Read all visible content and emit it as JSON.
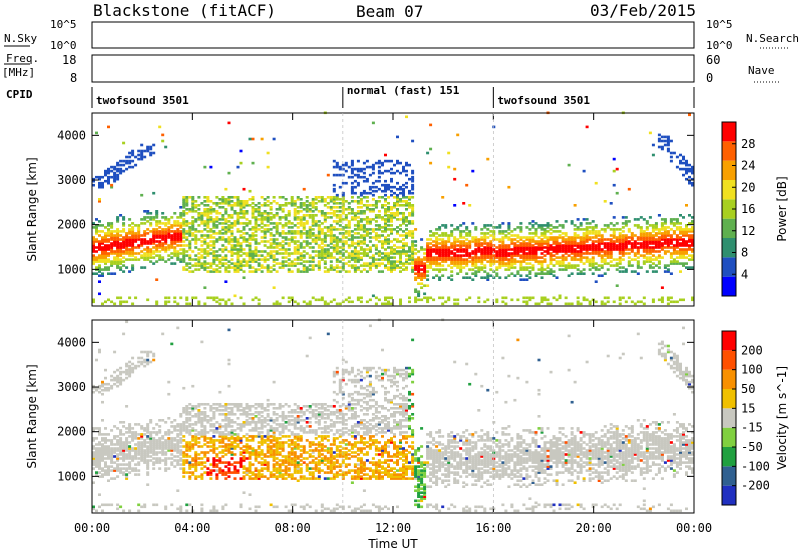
{
  "header": {
    "station": "Blackstone (fitACF)",
    "beam": "Beam 07",
    "date": "03/Feb/2015"
  },
  "top_panels": {
    "nsky_label": "N.Sky",
    "nsky_ticks": [
      "10^5",
      "10^0"
    ],
    "nsearch_label": "N.Search",
    "nsearch_ticks": [
      "10^5",
      "10^0"
    ],
    "freq_label": "Freq.",
    "freq_unit": "[MHz]",
    "freq_ticks": [
      "18",
      "8"
    ],
    "nave_label": "Nave",
    "nave_ticks": [
      "60",
      "0"
    ],
    "cpid_label": "CPID",
    "cpid_segments": [
      {
        "name": "twofsound 3501",
        "start_ut": 0,
        "end_ut": 10
      },
      {
        "name": "normal (fast) 151",
        "start_ut": 10,
        "end_ut": 16
      },
      {
        "name": "twofsound 3501",
        "start_ut": 16,
        "end_ut": 24
      }
    ]
  },
  "chart_data": [
    {
      "type": "heatmap",
      "name": "power",
      "xlabel": "Time UT",
      "ylabel": "Slant Range [km]",
      "x_ticks": [
        "00:00",
        "04:00",
        "08:00",
        "12:00",
        "16:00",
        "20:00",
        "00:00"
      ],
      "xlim": [
        0,
        24
      ],
      "y_ticks": [
        1000,
        2000,
        3000,
        4000
      ],
      "ylim": [
        180,
        4500
      ],
      "colorbar_label": "Power [dB]",
      "colorbar_ticks": [
        "28",
        "24",
        "20",
        "16",
        "12",
        "8",
        "4"
      ],
      "colorbar_colors": [
        "#0000ff",
        "#1f4fc0",
        "#2f8f6f",
        "#5fb04f",
        "#a8d020",
        "#f0e020",
        "#f8a000",
        "#ff6000",
        "#ff0000"
      ]
    },
    {
      "type": "heatmap",
      "name": "velocity",
      "xlabel": "Time UT",
      "ylabel": "Slant Range [km]",
      "x_ticks": [
        "00:00",
        "04:00",
        "08:00",
        "12:00",
        "16:00",
        "20:00",
        "00:00"
      ],
      "xlim": [
        0,
        24
      ],
      "y_ticks": [
        1000,
        2000,
        3000,
        4000
      ],
      "ylim": [
        180,
        4500
      ],
      "colorbar_label": "Velocity [m s^-1]",
      "colorbar_ticks": [
        "200",
        "100",
        "50",
        "15",
        "-15",
        "-50",
        "-100",
        "-200"
      ],
      "colorbar_colors": [
        "#2030c0",
        "#306090",
        "#20a040",
        "#80d040",
        "#c8c8c0",
        "#f0c000",
        "#f89000",
        "#ff5000",
        "#ff0000"
      ]
    }
  ]
}
